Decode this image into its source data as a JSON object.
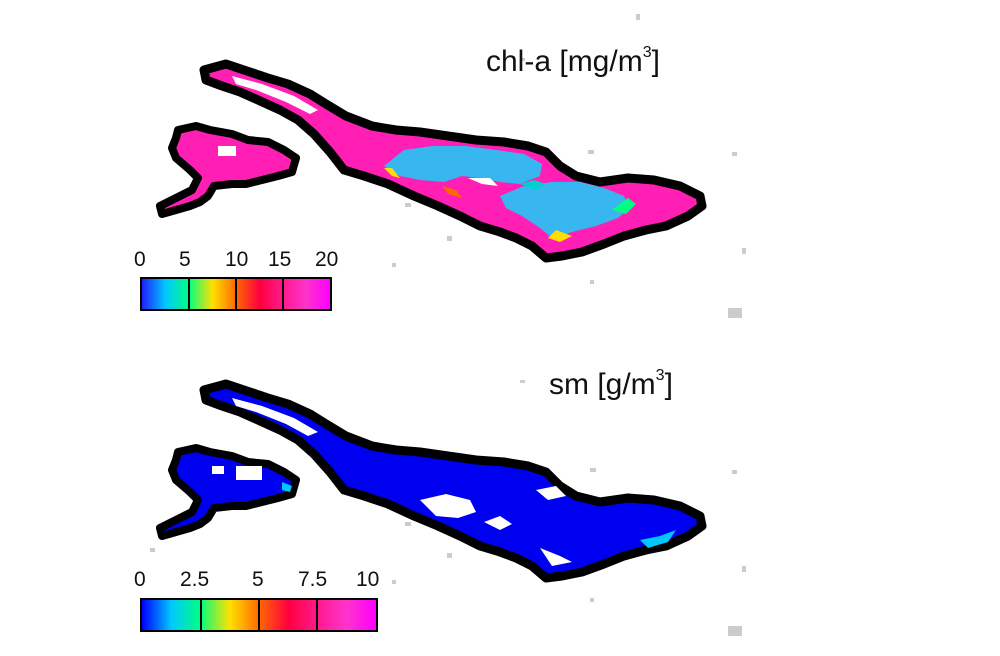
{
  "panels": [
    {
      "variable": "chl-a",
      "title_prefix": "chl-a [mg/m",
      "title_sup": "3",
      "title_suffix": "]",
      "colorbar": {
        "ticks": [
          "0",
          "5",
          "10",
          "15",
          "20"
        ],
        "range": [
          0,
          20
        ],
        "colors": [
          "#2020ff",
          "#00c8ff",
          "#00ff80",
          "#ffe000",
          "#ff6a00",
          "#ff0040",
          "#ff1a8c",
          "#ff33cc",
          "#ff00ff"
        ]
      }
    },
    {
      "variable": "sm",
      "title_prefix": "sm [g/m",
      "title_sup": "3",
      "title_suffix": "]",
      "colorbar": {
        "ticks": [
          "0",
          "2.5",
          "5",
          "7.5",
          "10"
        ],
        "range": [
          0,
          10
        ],
        "colors": [
          "#0000ff",
          "#00c8ff",
          "#00ff80",
          "#ffe000",
          "#ff6a00",
          "#ff0040",
          "#ff1a8c",
          "#ff33cc",
          "#ff00ff"
        ]
      }
    }
  ],
  "colors": {
    "coastline": "#000000",
    "chl_water_low": "#33bbee",
    "chl_water_high": "#ff1fb4",
    "sm_water": "#0000f0",
    "land_speckle": "#c8c8c8"
  }
}
